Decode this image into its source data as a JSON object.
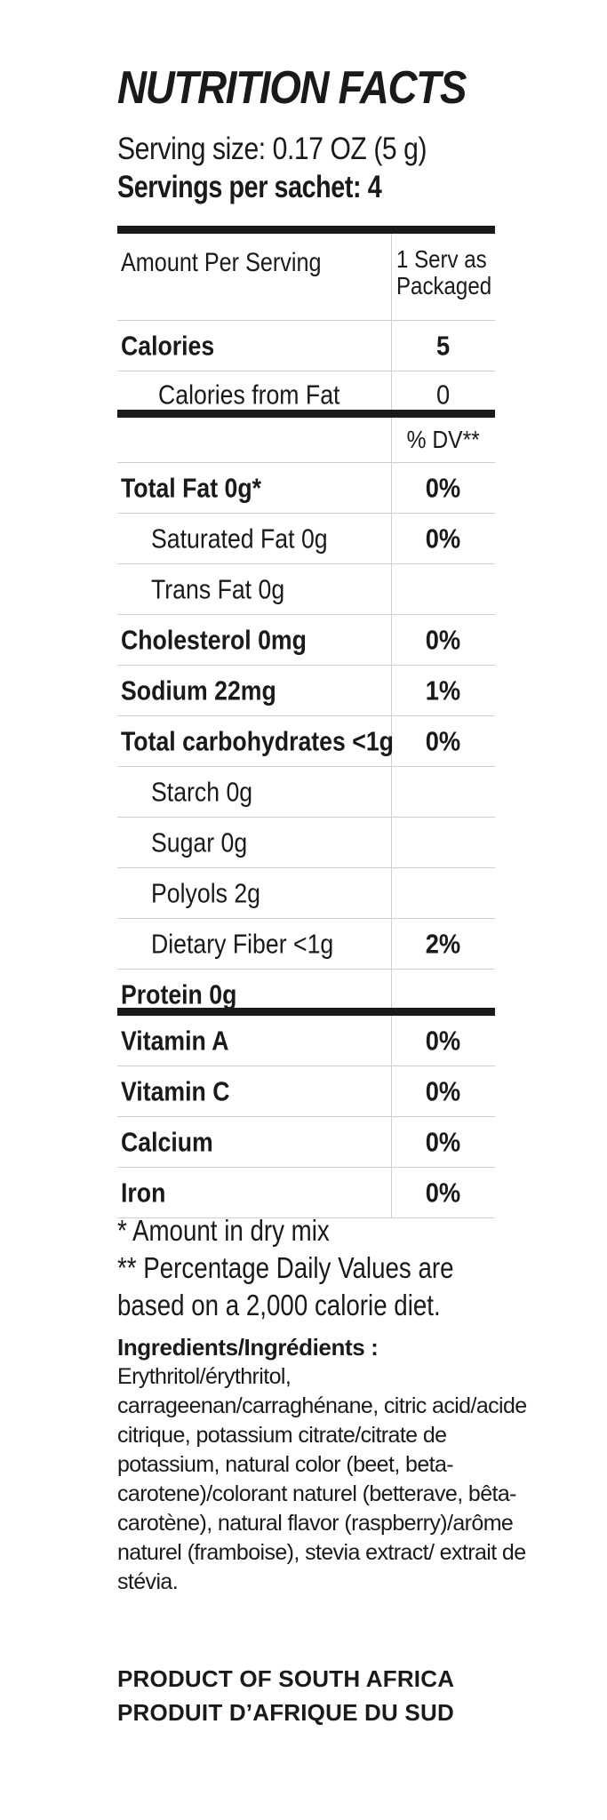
{
  "label": {
    "title": "NUTRITION FACTS",
    "serving_size": "Serving size: 0.17 OZ (5 g)",
    "servings_per": "Servings per sachet: 4",
    "header": {
      "amount_per_serving": "Amount Per Serving",
      "column_line1": "1 Serv as",
      "column_line2": "Packaged"
    },
    "calories": {
      "label": "Calories",
      "value": "5"
    },
    "calories_from_fat": {
      "label": "Calories from Fat",
      "value": "0"
    },
    "dv_header": "% DV**",
    "nutrients": [
      {
        "label": "Total Fat  0g*",
        "dv": "0%"
      },
      {
        "label": "Saturated Fat  0g",
        "dv": "0%"
      },
      {
        "label": "Trans Fat  0g",
        "dv": ""
      },
      {
        "label": "Cholesterol  0mg",
        "dv": "0%"
      },
      {
        "label": "Sodium  22mg",
        "dv": "1%"
      },
      {
        "label": "Total carbohydrates <1g",
        "dv": "0%"
      },
      {
        "label": "Starch  0g",
        "dv": ""
      },
      {
        "label": "Sugar  0g",
        "dv": ""
      },
      {
        "label": "Polyols  2g",
        "dv": ""
      },
      {
        "label": "Dietary Fiber  <1g",
        "dv": "2%"
      },
      {
        "label": "Protein  0g",
        "dv": ""
      }
    ],
    "vitamins": [
      {
        "label": "Vitamin A",
        "dv": "0%"
      },
      {
        "label": "Vitamin C",
        "dv": "0%"
      },
      {
        "label": "Calcium",
        "dv": "0%"
      },
      {
        "label": "Iron",
        "dv": "0%"
      }
    ],
    "footnotes": [
      "* Amount in dry mix",
      "** Percentage Daily Values are",
      "based on a 2,000 calorie diet."
    ],
    "ingredients_title": "Ingredients/Ingrédients :",
    "ingredients_text": "Erythritol/érythritol, carrageenan/carraghénane, citric acid/acide citrique, potassium citrate/citrate de potassium, natural color (beet, beta-carotene)/colorant naturel (betterave, bêta-carotène), natural flavor (raspberry)/arôme naturel (framboise), stevia extract/ extrait de stévia.",
    "product_origin_en": "PRODUCT OF SOUTH AFRICA",
    "product_origin_fr": "PRODUIT D’AFRIQUE DU SUD"
  }
}
